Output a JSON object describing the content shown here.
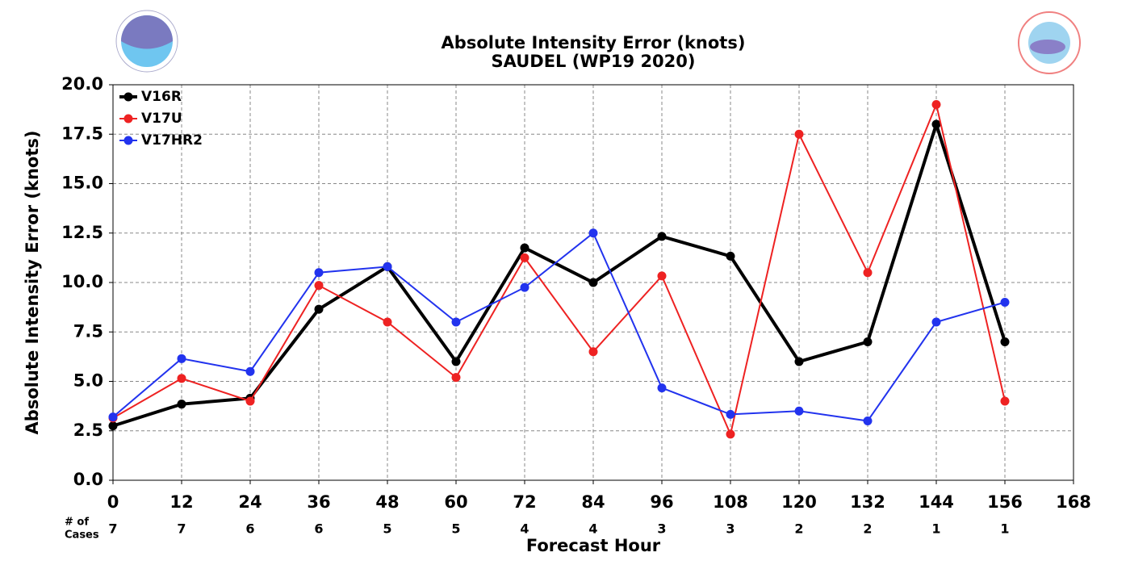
{
  "chart_data": {
    "type": "line",
    "title": "Absolute Intensity Error (knots)",
    "subtitle": "SAUDEL (WP19 2020)",
    "xlabel": "Forecast Hour",
    "ylabel": "Absolute Intensity Error (knots)",
    "x": [
      0,
      12,
      24,
      36,
      48,
      60,
      72,
      84,
      96,
      108,
      120,
      132,
      144,
      156
    ],
    "series": [
      {
        "name": "V16R",
        "color": "#000000",
        "values": [
          2.75,
          3.85,
          4.15,
          8.65,
          10.8,
          6.0,
          11.75,
          10.0,
          12.33,
          11.33,
          6.0,
          7.0,
          18.0,
          7.0
        ]
      },
      {
        "name": "V17U",
        "color": "#ee2222",
        "values": [
          3.15,
          5.15,
          4.0,
          9.85,
          8.0,
          5.2,
          11.25,
          6.5,
          10.33,
          2.33,
          17.5,
          10.5,
          19.0,
          4.0
        ]
      },
      {
        "name": "V17HR2",
        "color": "#2233ee",
        "values": [
          3.2,
          6.15,
          5.5,
          10.5,
          10.8,
          8.0,
          9.75,
          12.5,
          4.67,
          3.33,
          3.5,
          3.0,
          8.0,
          9.0
        ]
      }
    ],
    "cases_label": [
      "# of",
      "Cases"
    ],
    "cases": [
      7,
      7,
      6,
      6,
      5,
      5,
      4,
      4,
      3,
      3,
      2,
      2,
      1,
      1
    ],
    "xlim": [
      0,
      168
    ],
    "xticks": [
      0,
      12,
      24,
      36,
      48,
      60,
      72,
      84,
      96,
      108,
      120,
      132,
      144,
      156,
      168
    ],
    "ylim": [
      0,
      20
    ],
    "yticks": [
      {
        "value": 0,
        "label": "0.0"
      },
      {
        "value": 2.5,
        "label": "2.5"
      },
      {
        "value": 5,
        "label": "5.0"
      },
      {
        "value": 7.5,
        "label": "7.5"
      },
      {
        "value": 10,
        "label": "10.0"
      },
      {
        "value": 12.5,
        "label": "12.5"
      },
      {
        "value": 15,
        "label": "15.0"
      },
      {
        "value": 17.5,
        "label": "17.5"
      },
      {
        "value": 20,
        "label": "20.0"
      }
    ],
    "grid": true,
    "legend": "upper left"
  }
}
